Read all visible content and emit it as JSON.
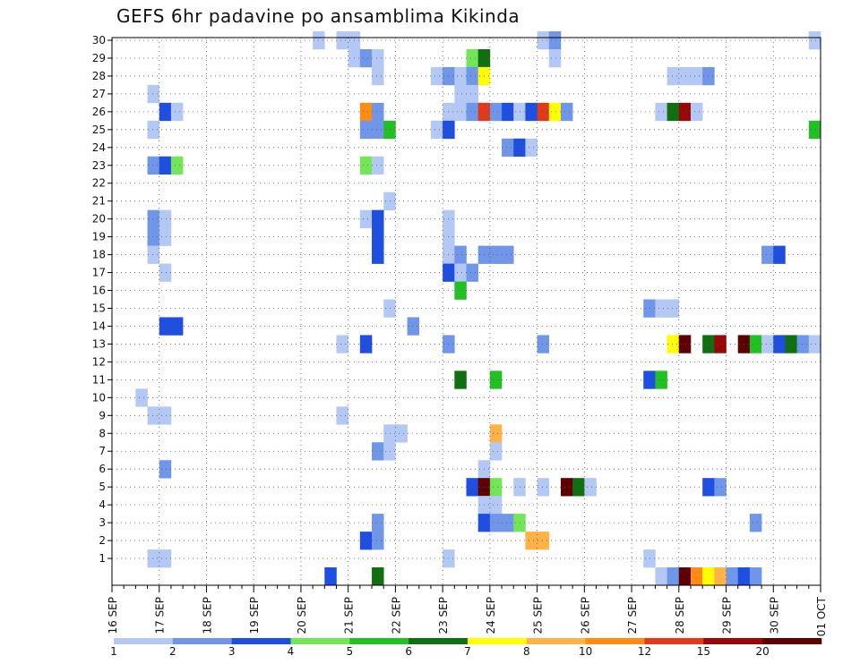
{
  "title": "GEFS 6hr padavine po ansamblima Kikinda",
  "chart_data": {
    "type": "heatmap",
    "title": "GEFS 6hr padavine po ansamblima Kikinda",
    "x_tick_labels": [
      "16 SEP",
      "17 SEP",
      "18 SEP",
      "19 SEP",
      "20 SEP",
      "21 SEP",
      "22 SEP",
      "23 SEP",
      "24 SEP",
      "25 SEP",
      "26 SEP",
      "27 SEP",
      "28 SEP",
      "29 SEP",
      "30 SEP",
      "01 OCT"
    ],
    "y_range": [
      0,
      30
    ],
    "y_ticks": [
      1,
      2,
      3,
      4,
      5,
      6,
      7,
      8,
      9,
      10,
      11,
      12,
      13,
      14,
      15,
      16,
      17,
      18,
      19,
      20,
      21,
      22,
      23,
      24,
      25,
      26,
      27,
      28,
      29,
      30
    ],
    "time_steps_per_day": 4,
    "grid": "dotted",
    "colorbar": {
      "position": "bottom",
      "labels": [
        "1",
        "2",
        "3",
        "4",
        "5",
        "6",
        "7",
        "8",
        "10",
        "12",
        "15",
        "20"
      ],
      "colors": [
        "#b4c8f5",
        "#6f96e9",
        "#1f4fe0",
        "#73e657",
        "#23c024",
        "#107010",
        "#ffff00",
        "#ffb347",
        "#ff8a14",
        "#e03a1a",
        "#980808",
        "#5c0000"
      ]
    },
    "cells": [
      [
        17,
        30,
        1
      ],
      [
        19,
        30,
        1
      ],
      [
        20,
        30,
        1
      ],
      [
        36,
        30,
        1
      ],
      [
        37,
        30,
        2
      ],
      [
        59,
        30,
        1
      ],
      [
        20,
        29,
        1
      ],
      [
        21,
        29,
        2
      ],
      [
        22,
        29,
        1
      ],
      [
        30,
        29,
        4
      ],
      [
        31,
        29,
        6
      ],
      [
        37,
        29,
        1
      ],
      [
        22,
        28,
        1
      ],
      [
        27,
        28,
        1
      ],
      [
        28,
        28,
        2
      ],
      [
        29,
        28,
        1
      ],
      [
        30,
        28,
        2
      ],
      [
        31,
        28,
        7
      ],
      [
        47,
        28,
        1
      ],
      [
        48,
        28,
        1
      ],
      [
        49,
        28,
        1
      ],
      [
        50,
        28,
        2
      ],
      [
        3,
        27,
        1
      ],
      [
        29,
        27,
        1
      ],
      [
        30,
        27,
        1
      ],
      [
        4,
        26,
        3
      ],
      [
        5,
        26,
        1
      ],
      [
        21,
        26,
        9
      ],
      [
        22,
        26,
        2
      ],
      [
        28,
        26,
        1
      ],
      [
        29,
        26,
        1
      ],
      [
        30,
        26,
        2
      ],
      [
        31,
        26,
        10
      ],
      [
        32,
        26,
        2
      ],
      [
        33,
        26,
        3
      ],
      [
        34,
        26,
        1
      ],
      [
        35,
        26,
        3
      ],
      [
        36,
        26,
        10
      ],
      [
        37,
        26,
        7
      ],
      [
        38,
        26,
        2
      ],
      [
        46,
        26,
        1
      ],
      [
        47,
        26,
        6
      ],
      [
        48,
        26,
        11
      ],
      [
        49,
        26,
        1
      ],
      [
        3,
        25,
        1
      ],
      [
        21,
        25,
        2
      ],
      [
        22,
        25,
        2
      ],
      [
        23,
        25,
        5
      ],
      [
        27,
        25,
        1
      ],
      [
        28,
        25,
        3
      ],
      [
        59,
        25,
        5
      ],
      [
        33,
        24,
        2
      ],
      [
        34,
        24,
        3
      ],
      [
        35,
        24,
        1
      ],
      [
        3,
        23,
        2
      ],
      [
        4,
        23,
        3
      ],
      [
        5,
        23,
        4
      ],
      [
        21,
        23,
        4
      ],
      [
        22,
        23,
        1
      ],
      [
        23,
        21,
        1
      ],
      [
        3,
        20,
        2
      ],
      [
        4,
        20,
        1
      ],
      [
        21,
        20,
        1
      ],
      [
        22,
        20,
        3
      ],
      [
        28,
        20,
        1
      ],
      [
        3,
        19,
        2
      ],
      [
        4,
        19,
        1
      ],
      [
        22,
        19,
        3
      ],
      [
        28,
        19,
        1
      ],
      [
        3,
        18,
        1
      ],
      [
        22,
        18,
        3
      ],
      [
        28,
        18,
        1
      ],
      [
        29,
        18,
        2
      ],
      [
        31,
        18,
        2
      ],
      [
        32,
        18,
        2
      ],
      [
        33,
        18,
        2
      ],
      [
        55,
        18,
        2
      ],
      [
        56,
        18,
        3
      ],
      [
        4,
        17,
        1
      ],
      [
        28,
        17,
        3
      ],
      [
        29,
        17,
        1
      ],
      [
        30,
        17,
        2
      ],
      [
        29,
        16,
        5
      ],
      [
        23,
        15,
        1
      ],
      [
        45,
        15,
        2
      ],
      [
        46,
        15,
        1
      ],
      [
        47,
        15,
        1
      ],
      [
        4,
        14,
        3
      ],
      [
        5,
        14,
        3
      ],
      [
        25,
        14,
        2
      ],
      [
        19,
        13,
        1
      ],
      [
        21,
        13,
        3
      ],
      [
        28,
        13,
        2
      ],
      [
        36,
        13,
        2
      ],
      [
        47,
        13,
        7
      ],
      [
        48,
        13,
        12
      ],
      [
        50,
        13,
        6
      ],
      [
        51,
        13,
        11
      ],
      [
        53,
        13,
        12
      ],
      [
        54,
        13,
        5
      ],
      [
        55,
        13,
        1
      ],
      [
        56,
        13,
        3
      ],
      [
        57,
        13,
        6
      ],
      [
        58,
        13,
        2
      ],
      [
        59,
        13,
        1
      ],
      [
        29,
        11,
        6
      ],
      [
        32,
        11,
        5
      ],
      [
        45,
        11,
        3
      ],
      [
        46,
        11,
        5
      ],
      [
        2,
        10,
        1
      ],
      [
        3,
        9,
        1
      ],
      [
        4,
        9,
        1
      ],
      [
        19,
        9,
        1
      ],
      [
        23,
        8,
        1
      ],
      [
        24,
        8,
        1
      ],
      [
        32,
        8,
        8
      ],
      [
        22,
        7,
        2
      ],
      [
        23,
        7,
        1
      ],
      [
        32,
        7,
        1
      ],
      [
        4,
        6,
        2
      ],
      [
        31,
        6,
        1
      ],
      [
        30,
        5,
        3
      ],
      [
        31,
        5,
        12
      ],
      [
        32,
        5,
        4
      ],
      [
        34,
        5,
        1
      ],
      [
        36,
        5,
        1
      ],
      [
        38,
        5,
        12
      ],
      [
        39,
        5,
        6
      ],
      [
        40,
        5,
        1
      ],
      [
        50,
        5,
        3
      ],
      [
        51,
        5,
        2
      ],
      [
        31,
        4,
        1
      ],
      [
        32,
        4,
        1
      ],
      [
        22,
        3,
        2
      ],
      [
        31,
        3,
        3
      ],
      [
        32,
        3,
        2
      ],
      [
        33,
        3,
        2
      ],
      [
        34,
        3,
        4
      ],
      [
        54,
        3,
        2
      ],
      [
        21,
        2,
        3
      ],
      [
        22,
        2,
        2
      ],
      [
        35,
        2,
        8
      ],
      [
        36,
        2,
        8
      ],
      [
        3,
        1,
        1
      ],
      [
        4,
        1,
        1
      ],
      [
        28,
        1,
        1
      ],
      [
        45,
        1,
        1
      ],
      [
        18,
        0,
        3
      ],
      [
        22,
        0,
        6
      ],
      [
        46,
        0,
        1
      ],
      [
        47,
        0,
        2
      ],
      [
        48,
        0,
        12
      ],
      [
        49,
        0,
        9
      ],
      [
        50,
        0,
        7
      ],
      [
        51,
        0,
        8
      ],
      [
        52,
        0,
        2
      ],
      [
        53,
        0,
        3
      ],
      [
        54,
        0,
        2
      ]
    ]
  }
}
